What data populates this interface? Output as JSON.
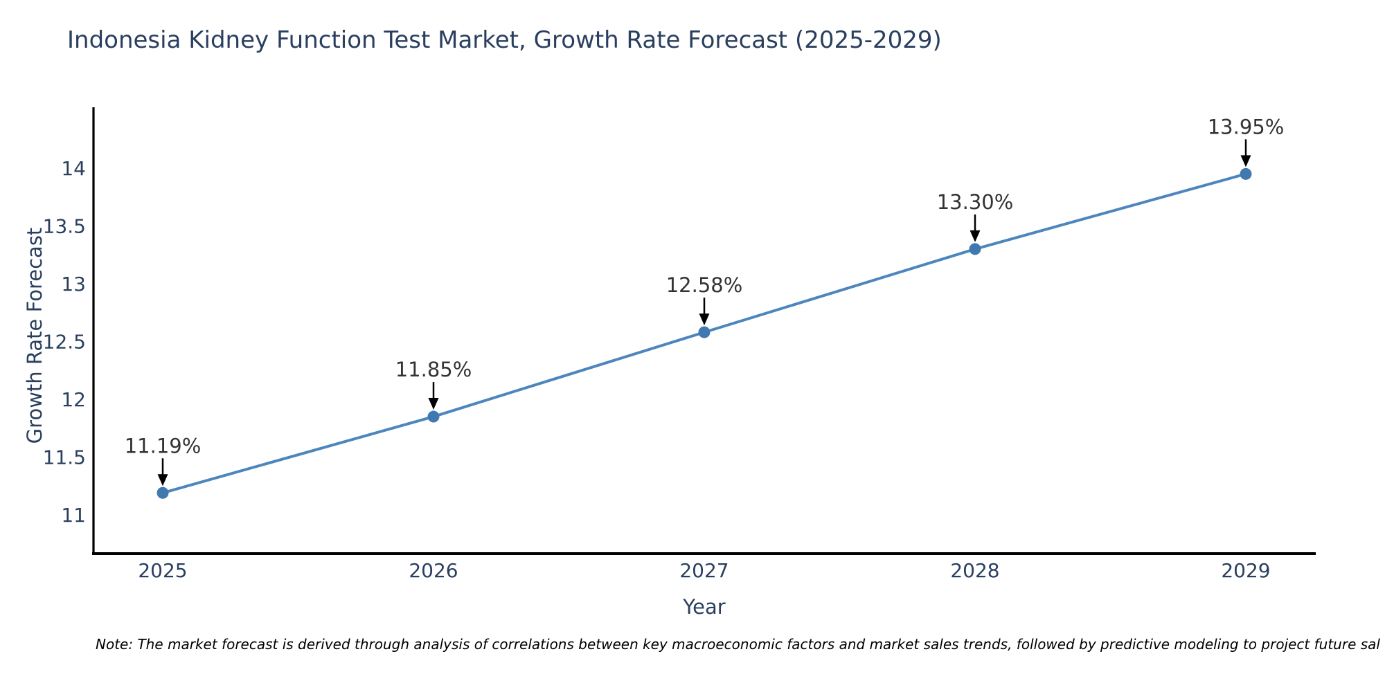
{
  "chart_data": {
    "type": "line",
    "title": "Indonesia Kidney Function Test Market, Growth Rate Forecast (2025-2029)",
    "xlabel": "Year",
    "ylabel": "Growth Rate Forecast",
    "categories": [
      "2025",
      "2026",
      "2027",
      "2028",
      "2029"
    ],
    "series": [
      {
        "name": "Growth Rate Forecast",
        "values": [
          11.19,
          11.85,
          12.58,
          13.3,
          13.95
        ],
        "point_labels": [
          "11.19%",
          "11.85%",
          "12.58%",
          "13.30%",
          "13.95%"
        ]
      }
    ],
    "y_ticks": [
      "11",
      "11.5",
      "12",
      "12.5",
      "13",
      "13.5",
      "14"
    ],
    "ylim": [
      10.66,
      14.53
    ],
    "grid": false,
    "legend_position": "none",
    "marker_style": "circle",
    "annotation_style": "arrow-down",
    "colors": {
      "line": "#4d86bd",
      "marker": "#4079b0",
      "axis": "#000000",
      "tick_text": "#2a3f5f",
      "title_text": "#2a3f5f",
      "annotation_text": "#333333",
      "arrow": "#000000",
      "background": "#ffffff"
    }
  },
  "footnote": {
    "text": "Note: The market forecast is derived through analysis of correlations between key macroeconomic factors and market sales trends, followed by predictive modeling to project future sal"
  }
}
